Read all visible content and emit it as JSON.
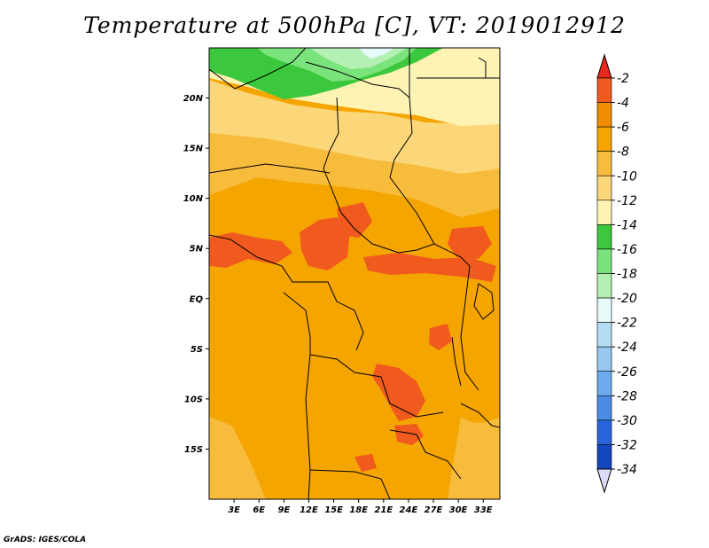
{
  "title": "Temperature at 500hPa [C], VT: 2019012912",
  "credit": "GrADS: IGES/COLA",
  "map": {
    "lon_range": [
      0,
      35
    ],
    "lat_range": [
      -20,
      25
    ],
    "lat_ticks": [
      {
        "value": 20,
        "label": "20N"
      },
      {
        "value": 15,
        "label": "15N"
      },
      {
        "value": 10,
        "label": "10N"
      },
      {
        "value": 5,
        "label": "5N"
      },
      {
        "value": 0,
        "label": "EQ"
      },
      {
        "value": -5,
        "label": "5S"
      },
      {
        "value": -10,
        "label": "10S"
      },
      {
        "value": -15,
        "label": "15S"
      }
    ],
    "lon_ticks": [
      {
        "value": 3,
        "label": "3E"
      },
      {
        "value": 6,
        "label": "6E"
      },
      {
        "value": 9,
        "label": "9E"
      },
      {
        "value": 12,
        "label": "12E"
      },
      {
        "value": 15,
        "label": "15E"
      },
      {
        "value": 18,
        "label": "18E"
      },
      {
        "value": 21,
        "label": "21E"
      },
      {
        "value": 24,
        "label": "24E"
      },
      {
        "value": 27,
        "label": "27E"
      },
      {
        "value": 30,
        "label": "30E"
      },
      {
        "value": 33,
        "label": "33E"
      }
    ]
  },
  "colorbar": {
    "levels": [
      "-2",
      "-4",
      "-6",
      "-8",
      "-10",
      "-12",
      "-14",
      "-16",
      "-18",
      "-20",
      "-22",
      "-24",
      "-26",
      "-28",
      "-30",
      "-32",
      "-34"
    ],
    "colors": [
      "#f05a1e",
      "#f08c00",
      "#f5a500",
      "#f8bc3c",
      "#fcd779",
      "#fff3b4",
      "#3cc83c",
      "#7be37b",
      "#b4f0b4",
      "#e6fafa",
      "#b4dcf5",
      "#96c8f0",
      "#6eaaf0",
      "#4b8ce6",
      "#2864dc",
      "#1446be",
      "#0a1e8c"
    ],
    "top_color": "#e6281e",
    "bottom_color": "#dcdcf8"
  }
}
